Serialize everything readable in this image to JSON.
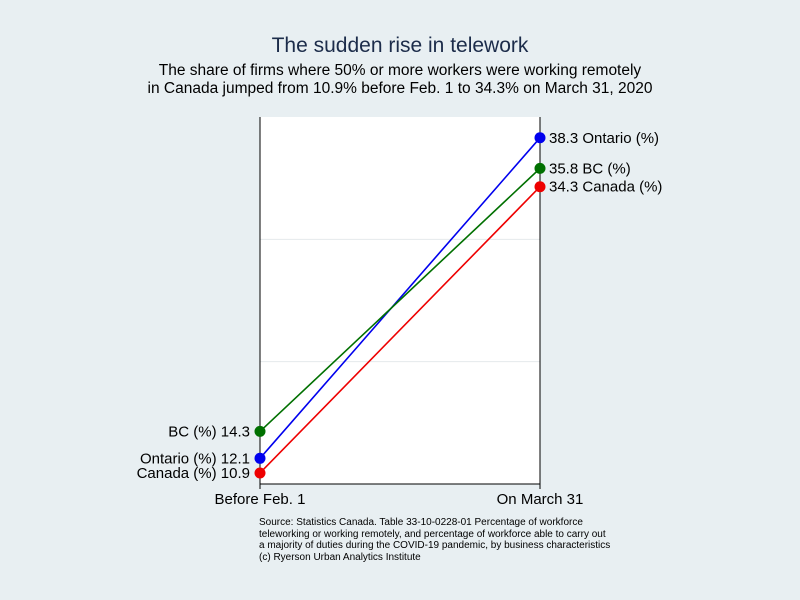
{
  "chart_data": {
    "type": "line",
    "title": "The sudden rise in telework",
    "subtitle": [
      "The share of firms where 50% or more workers were working remotely",
      "in Canada jumped from 10.9% before Feb. 1 to 34.3% on March 31, 2020"
    ],
    "categories": [
      "Before Feb. 1",
      "On March 31"
    ],
    "ylim": [
      10,
      40
    ],
    "grid": true,
    "series": [
      {
        "name": "Ontario (%)",
        "color": "#0000ee",
        "values": [
          12.1,
          38.3
        ],
        "labels": [
          "12.1",
          "38.3"
        ]
      },
      {
        "name": "BC (%)",
        "color": "#007000",
        "values": [
          14.3,
          35.8
        ],
        "labels": [
          "14.3",
          "35.8"
        ]
      },
      {
        "name": "Canada (%)",
        "color": "#ee0000",
        "values": [
          10.9,
          34.3
        ],
        "labels": [
          "10.9",
          "34.3"
        ]
      }
    ]
  },
  "source_note": [
    "Source: Statistics Canada.  Table  33-10-0228-01   Percentage of workforce",
    "teleworking or working remotely, and percentage of workforce able to carry out",
    "a majority of duties during the COVID-19 pandemic, by business characteristics",
    "(c) Ryerson Urban Analytics Institute"
  ]
}
